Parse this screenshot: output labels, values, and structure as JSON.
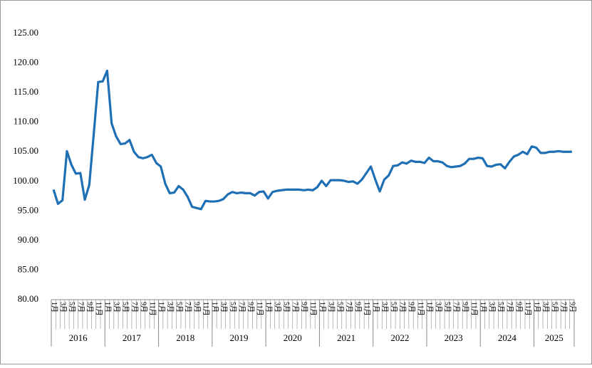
{
  "chart_data": {
    "type": "line",
    "categories": [
      "1月",
      null,
      "3月",
      null,
      "5月",
      null,
      "7月",
      null,
      "9月",
      null,
      "11月",
      null,
      "1月",
      null,
      "3月",
      null,
      "5月",
      null,
      "7月",
      null,
      "9月",
      null,
      "11月",
      null,
      "1月",
      null,
      "3月",
      null,
      "5月",
      null,
      "7月",
      null,
      "9月",
      null,
      "11月",
      null,
      "1月",
      null,
      "3月",
      null,
      "5月",
      null,
      "7月",
      null,
      "9月",
      null,
      "11月",
      null,
      "1月",
      null,
      "3月",
      null,
      "5月",
      null,
      "7月",
      null,
      "9月",
      null,
      "11月",
      null,
      "1月",
      null,
      "3月",
      null,
      "5月",
      null,
      "7月",
      null,
      "9月",
      null,
      "11月",
      null,
      "1月",
      null,
      "3月",
      null,
      "5月",
      null,
      "7月",
      null,
      "9月",
      null,
      "11月",
      null,
      "1月",
      null,
      "3月",
      null,
      "5月",
      null,
      "7月",
      null,
      "9月",
      null,
      "11月",
      null,
      "1月",
      null,
      "3月",
      null,
      "5月",
      null,
      "7月",
      null,
      "9月",
      null,
      "11月",
      null,
      "1月",
      null,
      "3月",
      null,
      "5月",
      null,
      "7月",
      null,
      "9月"
    ],
    "groups": [
      "2016",
      "2017",
      "2018",
      "2019",
      "2020",
      "2021",
      "2022",
      "2023",
      "2024",
      "2025"
    ],
    "series": [
      {
        "color": "#1f6fb5",
        "values": [
          98.6,
          96.2,
          96.8,
          105.1,
          102.8,
          101.3,
          101.4,
          96.9,
          99.4,
          108,
          116.8,
          116.9,
          118.7,
          109.8,
          107.6,
          106.3,
          106.4,
          107,
          105,
          104.1,
          103.9,
          104.1,
          104.5,
          103.1,
          102.5,
          99.6,
          98,
          98.1,
          99.2,
          98.6,
          97.4,
          95.7,
          95.5,
          95.3,
          96.7,
          96.6,
          96.6,
          96.7,
          97,
          97.8,
          98.2,
          98,
          98.1,
          98,
          98,
          97.6,
          98.2,
          98.3,
          97.1,
          98.2,
          98.4,
          98.5,
          98.6,
          98.6,
          98.6,
          98.6,
          98.5,
          98.6,
          98.5,
          99,
          100.1,
          99.2,
          100.2,
          100.2,
          100.2,
          100.1,
          99.9,
          100,
          99.6,
          100.3,
          101.4,
          102.5,
          100.3,
          98.3,
          100.3,
          101,
          102.6,
          102.7,
          103.2,
          103,
          103.5,
          103.3,
          103.3,
          103.1,
          104,
          103.4,
          103.4,
          103.2,
          102.6,
          102.4,
          102.5,
          102.6,
          103,
          103.8,
          103.8,
          104,
          103.9,
          102.6,
          102.5,
          102.8,
          102.9,
          102.2,
          103.3,
          104.2,
          104.5,
          105,
          104.6,
          105.9,
          105.7,
          104.8,
          104.8,
          105,
          105,
          105.1,
          105,
          105,
          105
        ]
      }
    ],
    "ylim": [
      80,
      125
    ],
    "yticks": [
      {
        "value": 80,
        "label": "80.00"
      },
      {
        "value": 85,
        "label": "85.00"
      },
      {
        "value": 90,
        "label": "90.00"
      },
      {
        "value": 95,
        "label": "95.00"
      },
      {
        "value": 100,
        "label": "100.00"
      },
      {
        "value": 105,
        "label": "105.00"
      },
      {
        "value": 110,
        "label": "110.00"
      },
      {
        "value": 115,
        "label": "115.00"
      },
      {
        "value": 120,
        "label": "120.00"
      },
      {
        "value": 125,
        "label": "125.00"
      }
    ],
    "grid": false
  }
}
